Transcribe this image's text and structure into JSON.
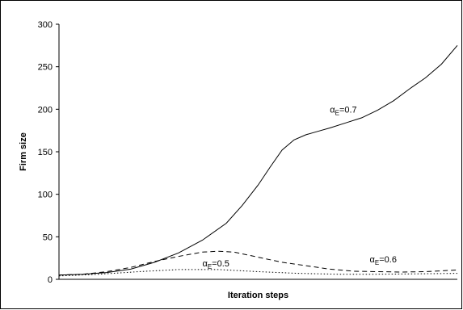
{
  "chart_data": {
    "type": "line",
    "title": "",
    "xlabel": "Iteration steps",
    "ylabel": "Firm size",
    "ylim": [
      0,
      300
    ],
    "yticks": [
      0,
      50,
      100,
      150,
      200,
      250,
      300
    ],
    "xlim": [
      0,
      100
    ],
    "x_ticks_labeled": false,
    "grid": false,
    "legend": "none",
    "series": [
      {
        "label_main": "α",
        "label_sub": "E",
        "label_value": "=0.7",
        "line_style": "solid",
        "x": [
          0,
          6,
          12,
          18,
          24,
          30,
          36,
          42,
          46,
          50,
          53,
          56,
          59,
          62,
          65,
          68,
          72,
          76,
          80,
          84,
          88,
          92,
          96,
          100
        ],
        "y": [
          5,
          6,
          8,
          12,
          20,
          31,
          46,
          66,
          87,
          111,
          132,
          152,
          164,
          170,
          174,
          178,
          184,
          190,
          199,
          210,
          224,
          237,
          253,
          275
        ]
      },
      {
        "label_main": "α",
        "label_sub": "E",
        "label_value": "=0.6",
        "line_style": "dashed",
        "x": [
          0,
          6,
          12,
          18,
          24,
          30,
          36,
          40,
          44,
          48,
          52,
          56,
          62,
          68,
          74,
          80,
          86,
          92,
          100
        ],
        "y": [
          5,
          6,
          9,
          14,
          21,
          27,
          32,
          33,
          32,
          28,
          24,
          20,
          16,
          12,
          9.5,
          9,
          8.5,
          9,
          11
        ]
      },
      {
        "label_main": "α",
        "label_sub": "E",
        "label_value": "=0.5",
        "line_style": "dotted",
        "x": [
          0,
          10,
          20,
          30,
          40,
          50,
          60,
          70,
          80,
          90,
          100
        ],
        "y": [
          4,
          6,
          9,
          11.5,
          11.5,
          9,
          7,
          6,
          6,
          6.5,
          7
        ]
      }
    ]
  }
}
